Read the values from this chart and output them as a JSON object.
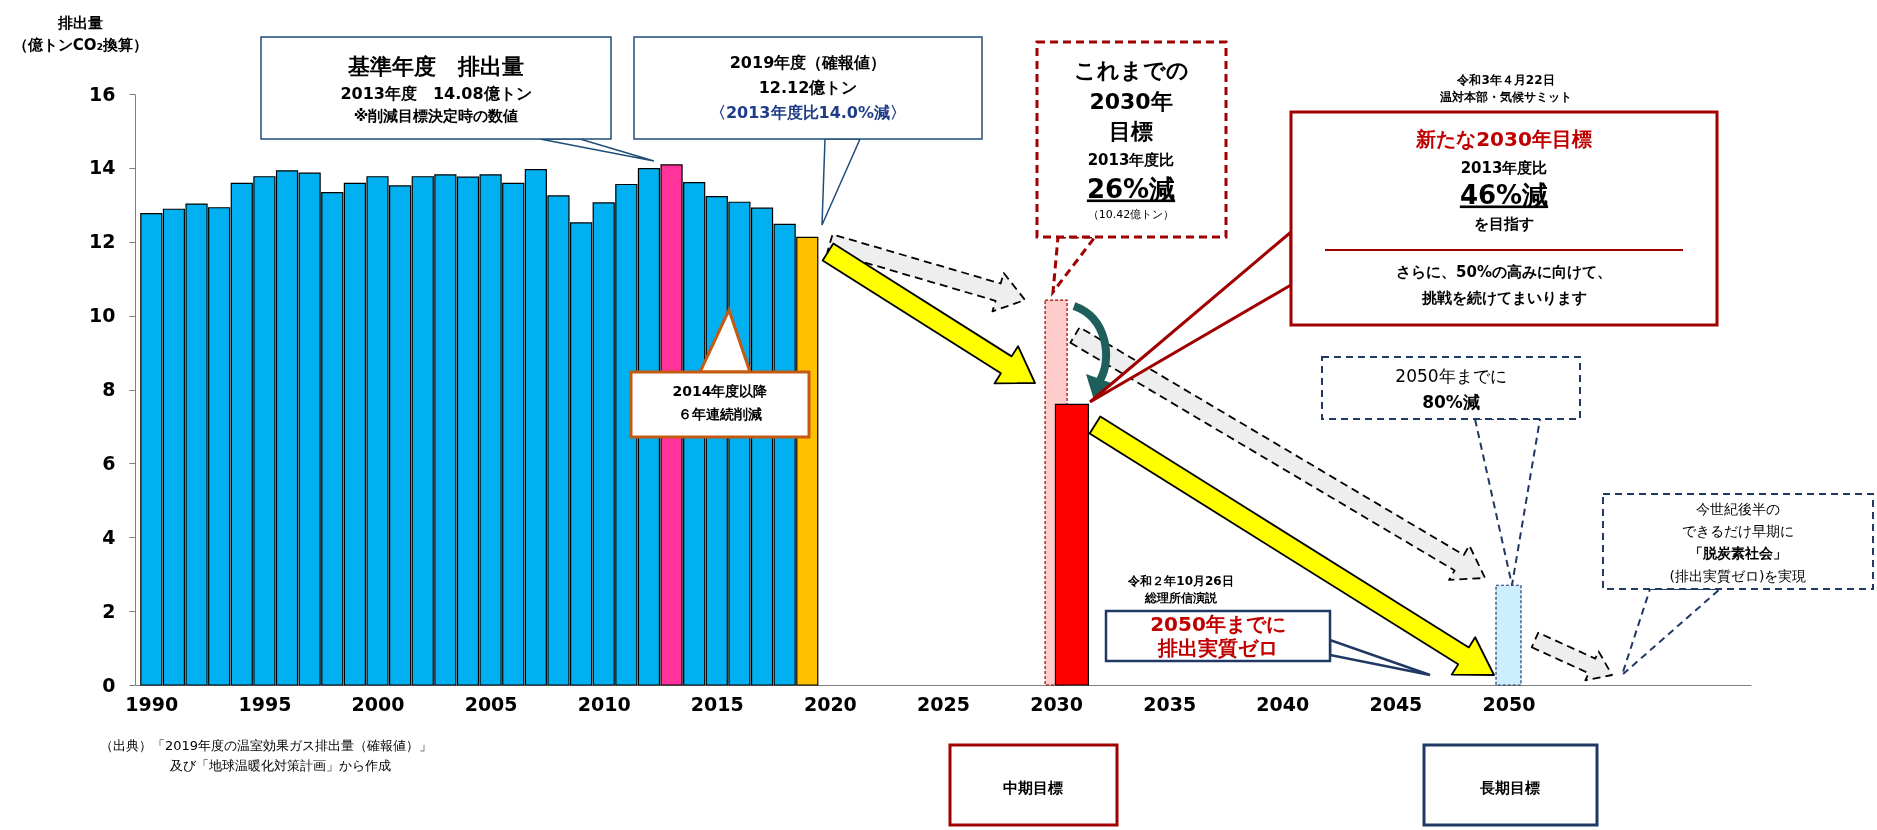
{
  "chart_data": {
    "type": "bar",
    "ylabel": "排出量（億トンCO₂換算）",
    "xlim": [
      1989.5,
      2060.5
    ],
    "xticks": [
      1990,
      1995,
      2000,
      2005,
      2010,
      2015,
      2020,
      2025,
      2030,
      2035,
      2040,
      2045,
      2050
    ],
    "ylim": [
      0,
      16
    ],
    "yticks": [
      0,
      2,
      4,
      6,
      8,
      10,
      12,
      14,
      16
    ],
    "annotations": [
      "基準年度　排出量",
      "2013年度　14.08億トン",
      "※削減目標決定時の数値",
      "2019年度（確報値）",
      "12.12億トン",
      "〈2013年度比14.0%減〉",
      "2014年度以降",
      "６年連続削減",
      "これまでの",
      "2030年",
      "目標",
      "2013年度比",
      "26%減",
      "（10.42億トン）",
      "令和3年４月22日",
      "温対本部・気候サミット",
      "新たな2030年目標",
      "2013年度比",
      "46%減",
      "を目指す",
      "さらに、50%の高みに向けて、",
      "挑戦を続けてまいります",
      "2050年までに",
      "80%減",
      "令和２年10月26日",
      "総理所信演説",
      "2050年までに",
      "排出実質ゼロ",
      "今世紀後半の",
      "できるだけ早期に",
      "「脱炭素社会」",
      "(排出実質ゼロ)を実現",
      "（出典）「2019年度の温室効果ガス排出量（確報値）」",
      "及び「地球温暖化対策計画」から作成",
      "中期目標",
      "長期目標"
    ],
    "series": [
      {
        "x": [
          1990,
          1991,
          1992,
          1993,
          1994,
          1995,
          1996,
          1997,
          1998,
          1999,
          2000,
          2001,
          2002,
          2003,
          2004,
          2005,
          2006,
          2007,
          2008,
          2009,
          2010,
          2011,
          2012,
          2013,
          2014,
          2015,
          2016,
          2017,
          2018,
          2019
        ],
        "values": [
          12.76,
          12.88,
          13.02,
          12.92,
          13.58,
          13.76,
          13.92,
          13.86,
          13.33,
          13.58,
          13.76,
          13.51,
          13.76,
          13.81,
          13.75,
          13.81,
          13.58,
          13.95,
          13.24,
          12.51,
          13.05,
          13.55,
          13.98,
          14.08,
          13.6,
          13.22,
          13.07,
          12.91,
          12.47,
          12.12
        ],
        "colors": [
          "#00b0f0",
          "#00b0f0",
          "#00b0f0",
          "#00b0f0",
          "#00b0f0",
          "#00b0f0",
          "#00b0f0",
          "#00b0f0",
          "#00b0f0",
          "#00b0f0",
          "#00b0f0",
          "#00b0f0",
          "#00b0f0",
          "#00b0f0",
          "#00b0f0",
          "#00b0f0",
          "#00b0f0",
          "#00b0f0",
          "#00b0f0",
          "#00b0f0",
          "#00b0f0",
          "#00b0f0",
          "#00b0f0",
          "#ff3399",
          "#00b0f0",
          "#00b0f0",
          "#00b0f0",
          "#00b0f0",
          "#00b0f0",
          "#ffc000"
        ]
      },
      {
        "x": [
          2030
        ],
        "values": [
          10.42
        ],
        "color": "#ffcccc"
      },
      {
        "x": [
          2030.7
        ],
        "values": [
          7.6
        ],
        "color": "#ff0000"
      },
      {
        "x": [
          2050
        ],
        "values": [
          2.7
        ],
        "color": "#cceeff"
      }
    ]
  }
}
